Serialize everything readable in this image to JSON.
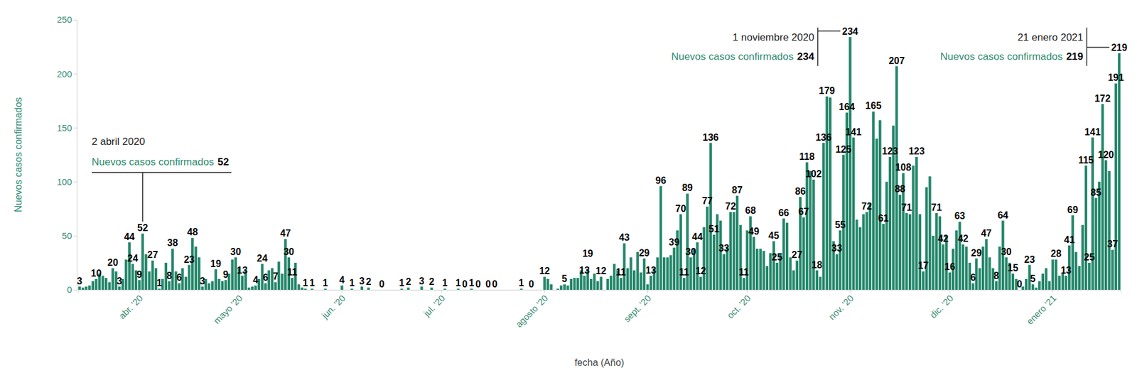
{
  "chart_data": {
    "type": "bar",
    "x_label": "fecha (Año)",
    "y_label": "Nuevos casos confirmados",
    "color": "#24876a",
    "ylim": [
      0,
      250
    ],
    "yticks": [
      0,
      50,
      100,
      150,
      200,
      250
    ],
    "grid": false,
    "categories": [
      null,
      null,
      null,
      null,
      null,
      null,
      null,
      null,
      null,
      null,
      null,
      null,
      null,
      null,
      null,
      null,
      null,
      null,
      "abr. '20",
      null,
      null,
      null,
      null,
      null,
      null,
      null,
      null,
      null,
      null,
      null,
      null,
      null,
      null,
      null,
      null,
      null,
      null,
      null,
      null,
      null,
      null,
      null,
      null,
      null,
      null,
      null,
      null,
      null,
      "mayo '20",
      null,
      null,
      null,
      null,
      null,
      null,
      null,
      null,
      null,
      null,
      null,
      null,
      null,
      null,
      null,
      null,
      null,
      null,
      null,
      null,
      null,
      null,
      null,
      null,
      null,
      null,
      null,
      null,
      null,
      null,
      "jun. '20",
      null,
      null,
      null,
      null,
      null,
      null,
      null,
      null,
      null,
      null,
      null,
      null,
      null,
      null,
      null,
      null,
      null,
      null,
      null,
      null,
      null,
      null,
      null,
      null,
      null,
      null,
      null,
      null,
      null,
      "jul. '20",
      null,
      null,
      null,
      null,
      null,
      null,
      null,
      null,
      null,
      null,
      null,
      null,
      null,
      null,
      null,
      null,
      null,
      null,
      null,
      null,
      null,
      null,
      null,
      null,
      null,
      null,
      null,
      null,
      null,
      null,
      "agosto '20",
      null,
      null,
      null,
      null,
      null,
      null,
      null,
      null,
      null,
      null,
      null,
      null,
      null,
      null,
      null,
      null,
      null,
      null,
      null,
      null,
      null,
      null,
      null,
      null,
      null,
      null,
      null,
      null,
      null,
      null,
      "sept. '20",
      null,
      null,
      null,
      null,
      null,
      null,
      null,
      null,
      null,
      null,
      null,
      null,
      null,
      null,
      null,
      null,
      null,
      null,
      null,
      null,
      null,
      null,
      null,
      null,
      null,
      null,
      null,
      null,
      null,
      "oct. '20",
      null,
      null,
      null,
      null,
      null,
      null,
      null,
      null,
      null,
      null,
      null,
      null,
      null,
      null,
      null,
      null,
      null,
      null,
      null,
      null,
      null,
      null,
      null,
      null,
      null,
      null,
      null,
      null,
      null,
      null,
      "nov. '20",
      null,
      null,
      null,
      null,
      null,
      null,
      null,
      null,
      null,
      null,
      null,
      null,
      null,
      null,
      null,
      null,
      null,
      null,
      null,
      null,
      null,
      null,
      null,
      null,
      null,
      null,
      null,
      null,
      null,
      "dic. '20",
      null,
      null,
      null,
      null,
      null,
      null,
      null,
      null,
      null,
      null,
      null,
      null,
      null,
      null,
      null,
      null,
      null,
      null,
      null,
      null,
      null,
      null,
      null,
      null,
      null,
      null,
      null,
      null,
      null,
      null,
      "enero '21",
      null,
      null,
      null,
      null,
      null,
      null,
      null,
      null,
      null,
      null,
      null,
      null,
      null,
      null,
      null,
      null,
      null,
      null,
      null,
      null
    ],
    "values": [
      3,
      2,
      3,
      4,
      8,
      10,
      15,
      13,
      11,
      7,
      20,
      17,
      3,
      10,
      28,
      44,
      24,
      18,
      9,
      52,
      33,
      17,
      27,
      20,
      1,
      10,
      25,
      8,
      38,
      17,
      6,
      20,
      12,
      23,
      48,
      40,
      30,
      3,
      10,
      6,
      8,
      19,
      10,
      8,
      9,
      15,
      28,
      30,
      20,
      13,
      18,
      2,
      3,
      4,
      10,
      24,
      6,
      18,
      20,
      7,
      26,
      15,
      47,
      30,
      11,
      25,
      5,
      2,
      1,
      0,
      1,
      0,
      0,
      0,
      1,
      0,
      0,
      0,
      0,
      4,
      0,
      0,
      1,
      0,
      0,
      3,
      0,
      2,
      0,
      0,
      0,
      0,
      0,
      0,
      0,
      0,
      0,
      1,
      0,
      2,
      0,
      0,
      0,
      3,
      0,
      0,
      2,
      0,
      0,
      0,
      1,
      0,
      0,
      0,
      1,
      0,
      0,
      0,
      1,
      0,
      0,
      0,
      0,
      0,
      0,
      0,
      0,
      0,
      0,
      0,
      0,
      0,
      0,
      1,
      0,
      0,
      0,
      0,
      0,
      0,
      12,
      10,
      5,
      0,
      1,
      4,
      5,
      4,
      10,
      11,
      11,
      18,
      13,
      19,
      10,
      15,
      8,
      12,
      0,
      10,
      13,
      24,
      18,
      11,
      43,
      20,
      30,
      18,
      35,
      16,
      29,
      5,
      13,
      20,
      30,
      96,
      30,
      30,
      32,
      39,
      55,
      70,
      11,
      89,
      30,
      38,
      44,
      12,
      58,
      77,
      136,
      51,
      70,
      64,
      33,
      40,
      72,
      72,
      87,
      60,
      11,
      55,
      68,
      49,
      38,
      38,
      36,
      22,
      34,
      45,
      25,
      33,
      66,
      62,
      30,
      18,
      27,
      86,
      67,
      118,
      110,
      102,
      18,
      12,
      136,
      179,
      178,
      45,
      33,
      55,
      125,
      164,
      234,
      141,
      65,
      58,
      70,
      72,
      80,
      165,
      140,
      157,
      61,
      100,
      123,
      152,
      207,
      88,
      108,
      71,
      70,
      115,
      123,
      70,
      17,
      95,
      105,
      50,
      71,
      68,
      42,
      50,
      16,
      38,
      55,
      63,
      42,
      40,
      25,
      6,
      29,
      20,
      40,
      47,
      30,
      20,
      8,
      40,
      64,
      30,
      25,
      15,
      10,
      0,
      3,
      10,
      23,
      5,
      2,
      8,
      15,
      20,
      8,
      28,
      28,
      13,
      15,
      13,
      41,
      69,
      35,
      22,
      60,
      115,
      25,
      141,
      85,
      100,
      172,
      120,
      110,
      37,
      191,
      219
    ],
    "value_labels": [
      "3",
      null,
      null,
      null,
      null,
      "10",
      null,
      null,
      null,
      null,
      "20",
      null,
      "3",
      null,
      null,
      "44",
      "24",
      null,
      "9",
      "52",
      null,
      null,
      "27",
      null,
      "1",
      null,
      null,
      "8",
      "38",
      null,
      "6",
      null,
      null,
      "23",
      "48",
      null,
      null,
      "3",
      null,
      null,
      null,
      "19",
      null,
      null,
      "9",
      null,
      null,
      "30",
      null,
      "13",
      null,
      null,
      null,
      "4",
      null,
      "24",
      "6",
      null,
      null,
      "7",
      null,
      null,
      "47",
      "30",
      "11",
      null,
      null,
      null,
      "1",
      null,
      "1",
      null,
      null,
      null,
      "1",
      null,
      null,
      null,
      null,
      "4",
      null,
      null,
      "1",
      null,
      null,
      "3",
      null,
      "2",
      null,
      null,
      null,
      "0",
      null,
      null,
      null,
      null,
      null,
      "1",
      null,
      "2",
      null,
      null,
      null,
      "3",
      null,
      null,
      "2",
      null,
      null,
      null,
      "1",
      null,
      null,
      null,
      "1",
      null,
      "0",
      null,
      "1",
      null,
      "0",
      null,
      null,
      "0",
      null,
      "0",
      null,
      null,
      null,
      null,
      null,
      null,
      null,
      "1",
      null,
      null,
      "0",
      null,
      null,
      null,
      "12",
      null,
      null,
      null,
      null,
      null,
      "5",
      null,
      null,
      null,
      null,
      null,
      "13",
      "19",
      null,
      null,
      null,
      "12",
      null,
      null,
      null,
      null,
      null,
      "11",
      "43",
      null,
      null,
      null,
      null,
      null,
      "29",
      null,
      "13",
      null,
      null,
      "96",
      null,
      null,
      null,
      "39",
      null,
      "70",
      "11",
      "89",
      "30",
      null,
      "44",
      "12",
      null,
      "77",
      "136",
      "51",
      null,
      null,
      "33",
      null,
      "72",
      null,
      "87",
      null,
      "11",
      null,
      "68",
      "49",
      null,
      null,
      null,
      null,
      null,
      "45",
      "25",
      null,
      "66",
      null,
      null,
      null,
      "27",
      "86",
      "67",
      "118",
      null,
      "102",
      "18",
      null,
      "136",
      "179",
      null,
      null,
      "33",
      "55",
      "125",
      "164",
      "234",
      "141",
      null,
      null,
      null,
      "72",
      null,
      "165",
      null,
      null,
      "61",
      null,
      "123",
      null,
      "207",
      "88",
      "108",
      "71",
      null,
      null,
      "123",
      null,
      "17",
      null,
      null,
      null,
      "71",
      null,
      "42",
      null,
      "16",
      null,
      null,
      "63",
      "42",
      null,
      null,
      "6",
      "29",
      null,
      null,
      "47",
      null,
      null,
      "8",
      null,
      "64",
      "30",
      null,
      "15",
      null,
      "0",
      null,
      null,
      "23",
      "5",
      null,
      null,
      null,
      null,
      null,
      null,
      "28",
      null,
      null,
      "13",
      "41",
      "69",
      null,
      null,
      null,
      "115",
      "25",
      "141",
      "85",
      null,
      "172",
      "120",
      null,
      "37",
      "191",
      "219"
    ],
    "annotations": [
      {
        "title": "2 abril 2020",
        "text": "Nuevos casos confirmados",
        "value": 52
      },
      {
        "title": "1 noviembre 2020",
        "text": "Nuevos casos confirmados",
        "value": 234
      },
      {
        "title": "21 enero 2021",
        "text": "Nuevos casos confirmados",
        "value": 219
      }
    ]
  }
}
